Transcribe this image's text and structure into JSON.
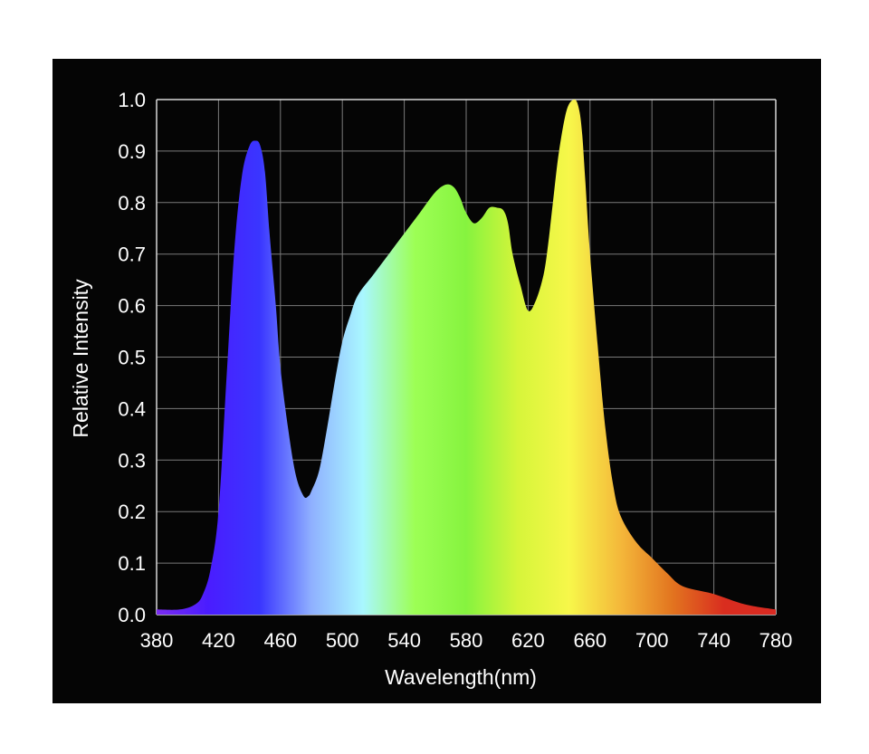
{
  "chart_data": {
    "type": "area",
    "title": "",
    "xlabel": "Wavelength(nm)",
    "ylabel": "Relative Intensity",
    "xlim": [
      380,
      780
    ],
    "ylim": [
      0,
      1.0
    ],
    "x_ticks": [
      "380",
      "420",
      "460",
      "500",
      "540",
      "580",
      "620",
      "660",
      "700",
      "740",
      "780"
    ],
    "y_ticks": [
      "0.0",
      "0.1",
      "0.2",
      "0.3",
      "0.4",
      "0.5",
      "0.6",
      "0.7",
      "0.8",
      "0.9",
      "1.0"
    ],
    "grid": true,
    "background": "#050505",
    "series": [
      {
        "x": [
          380,
          395,
          405,
          410,
          415,
          420,
          425,
          430,
          435,
          440,
          444,
          447,
          450,
          453,
          457,
          460,
          465,
          470,
          475,
          478,
          480,
          485,
          490,
          495,
          500,
          505,
          510,
          520,
          530,
          540,
          550,
          560,
          567,
          572,
          576,
          580,
          585,
          590,
          595,
          600,
          604,
          607,
          610,
          615,
          620,
          625,
          630,
          633,
          636,
          640,
          645,
          650,
          653,
          655,
          657,
          660,
          665,
          670,
          675,
          680,
          690,
          700,
          710,
          720,
          740,
          760,
          780
        ],
        "y": [
          0.01,
          0.01,
          0.02,
          0.04,
          0.09,
          0.2,
          0.45,
          0.7,
          0.85,
          0.91,
          0.92,
          0.91,
          0.86,
          0.74,
          0.6,
          0.48,
          0.36,
          0.27,
          0.23,
          0.23,
          0.24,
          0.28,
          0.36,
          0.45,
          0.53,
          0.58,
          0.62,
          0.66,
          0.7,
          0.74,
          0.78,
          0.82,
          0.835,
          0.83,
          0.81,
          0.78,
          0.76,
          0.77,
          0.79,
          0.79,
          0.785,
          0.76,
          0.7,
          0.64,
          0.59,
          0.61,
          0.66,
          0.72,
          0.8,
          0.9,
          0.98,
          1.0,
          0.98,
          0.93,
          0.84,
          0.7,
          0.52,
          0.36,
          0.25,
          0.19,
          0.14,
          0.11,
          0.08,
          0.055,
          0.04,
          0.02,
          0.01
        ]
      }
    ],
    "gradient_colors": [
      "#7b2cf0",
      "#4a1cff",
      "#3a36ff",
      "#8fb0ff",
      "#a9f7ff",
      "#9dff55",
      "#86f33f",
      "#d6f53a",
      "#f7f74a",
      "#f4b73a",
      "#e2741f",
      "#d92d1f",
      "#d92a22"
    ]
  }
}
